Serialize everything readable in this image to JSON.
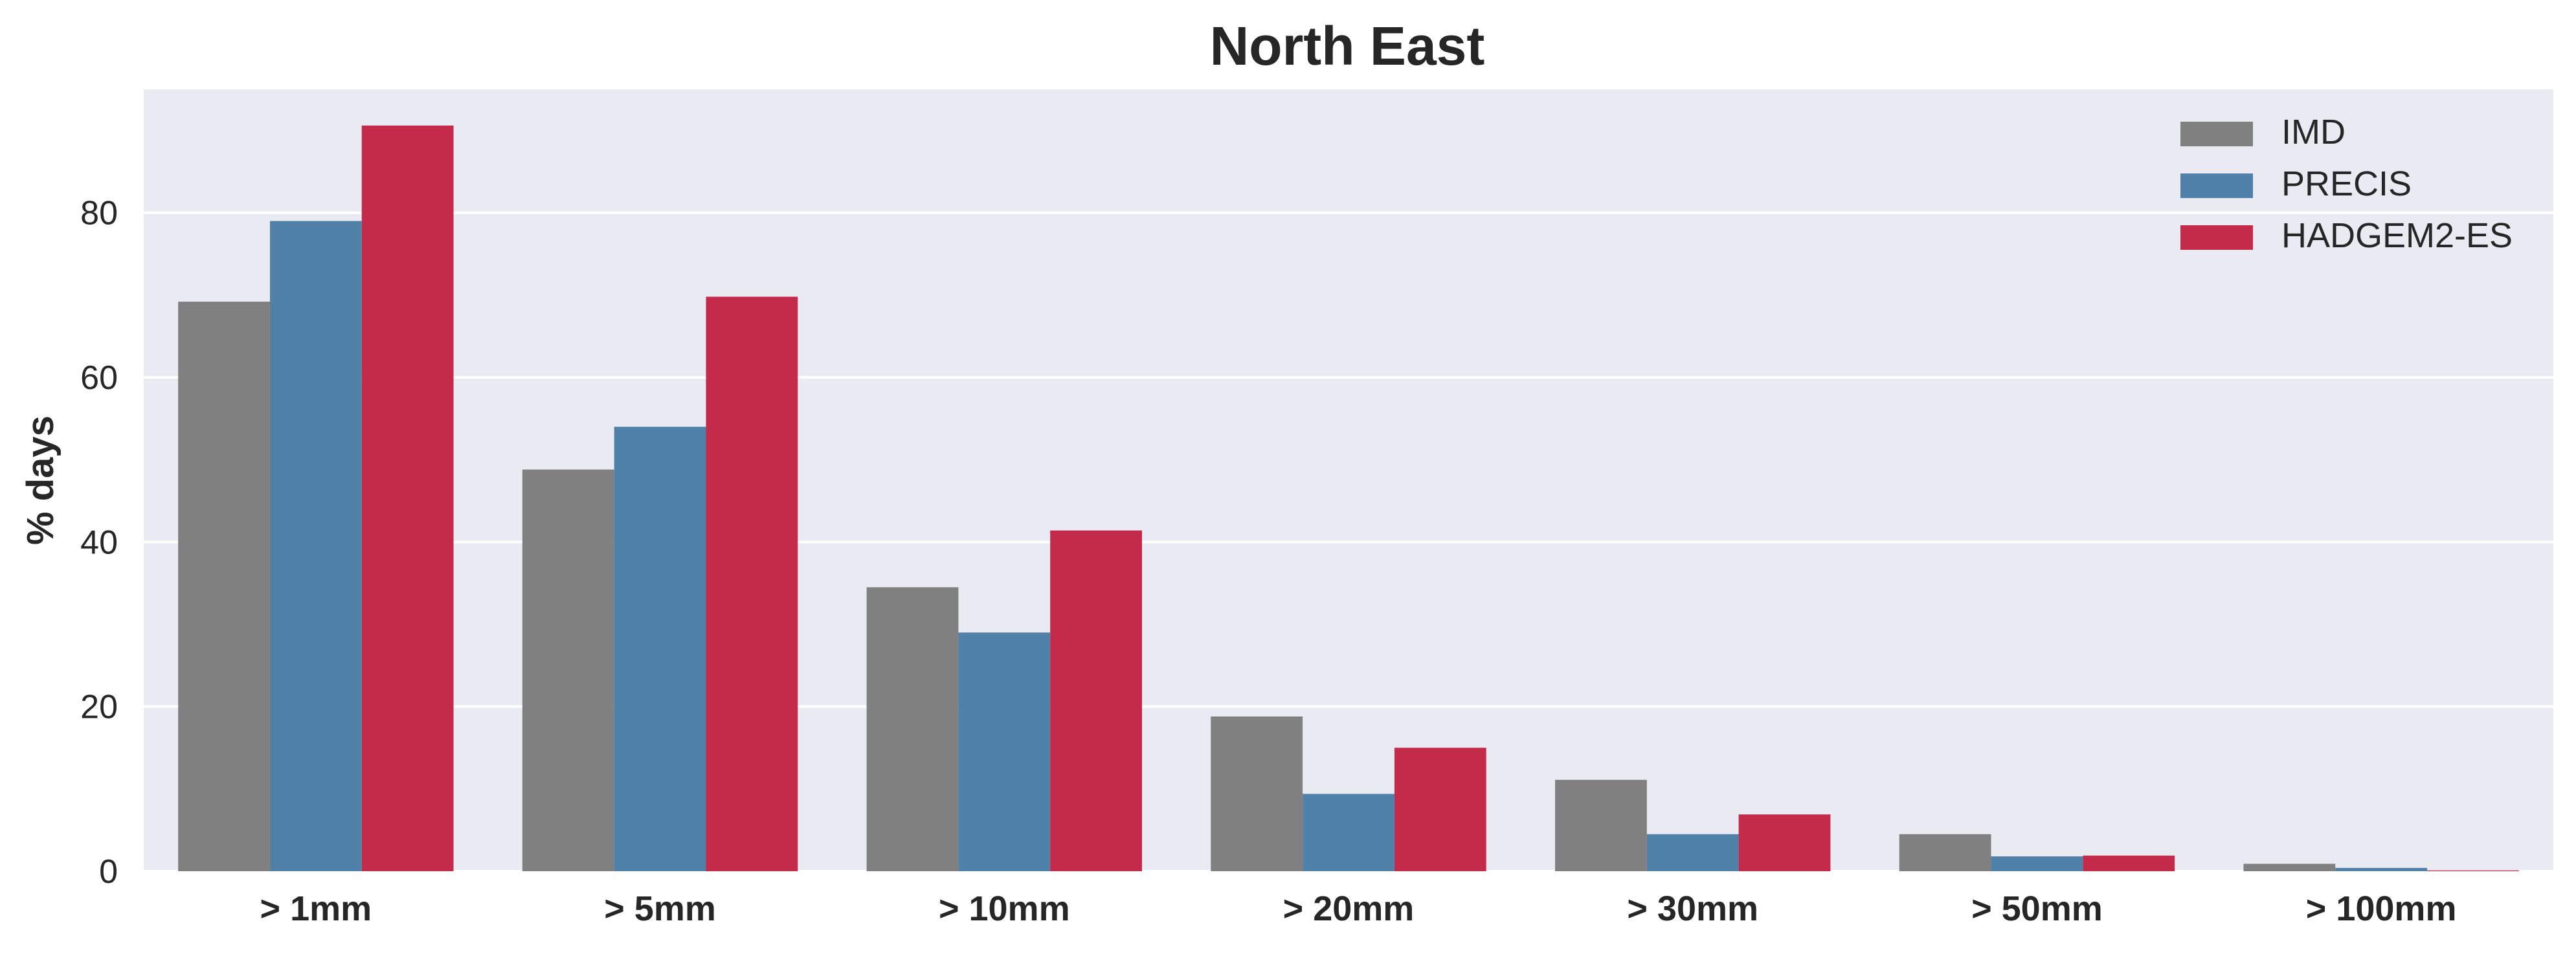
{
  "chart_data": {
    "type": "bar",
    "title": "North East",
    "xlabel": "",
    "ylabel": "% days",
    "ylim": [
      0,
      95
    ],
    "yticks": [
      0,
      20,
      40,
      60,
      80
    ],
    "grid": true,
    "legend_position": "top-right",
    "categories": [
      "> 1mm",
      "> 5mm",
      "> 10mm",
      "> 20mm",
      "> 30mm",
      "> 50mm",
      "> 100mm"
    ],
    "series": [
      {
        "name": "IMD",
        "color": "#808080",
        "values": [
          69.2,
          48.8,
          34.5,
          18.8,
          11.1,
          4.5,
          0.9
        ]
      },
      {
        "name": "PRECIS",
        "color": "#5081A8",
        "values": [
          79.0,
          54.0,
          29.0,
          9.4,
          4.5,
          1.8,
          0.4
        ]
      },
      {
        "name": "HADGEM2-ES",
        "color": "#C42A4A",
        "values": [
          90.6,
          69.8,
          41.4,
          15.0,
          6.9,
          1.9,
          0.1
        ]
      }
    ]
  }
}
